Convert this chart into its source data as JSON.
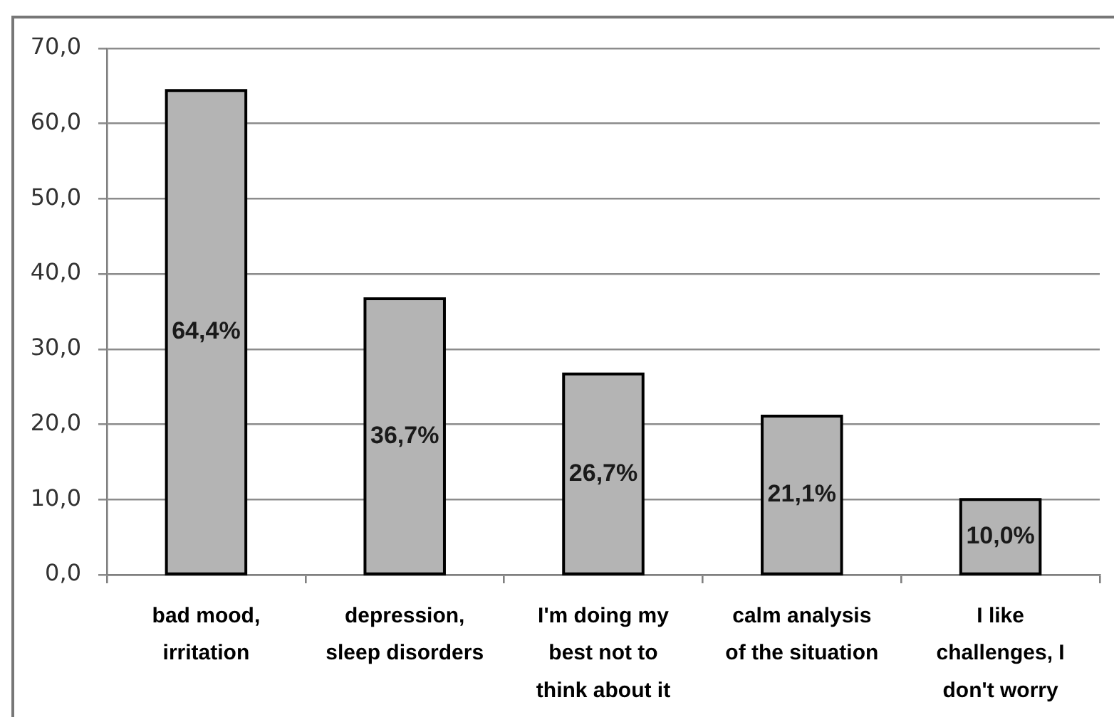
{
  "chart_data": {
    "type": "bar",
    "categories": [
      "bad mood, irritation",
      "depression, sleep disorders",
      "I'm doing my best not to think about it",
      "calm analysis of the situation",
      "I like challenges, I don't worry"
    ],
    "values": [
      64.4,
      36.7,
      26.7,
      21.1,
      10.0
    ],
    "value_labels": [
      "64,4%",
      "36,7%",
      "26,7%",
      "21,1%",
      "10,0%"
    ],
    "color": "#b4b4b4",
    "ylim": [
      0,
      70
    ],
    "yticks": [
      {
        "value": 0,
        "label": "0,0"
      },
      {
        "value": 10,
        "label": "10,0"
      },
      {
        "value": 20,
        "label": "20,0"
      },
      {
        "value": 30,
        "label": "30,0"
      },
      {
        "value": 40,
        "label": "40,0"
      },
      {
        "value": 50,
        "label": "50,0"
      },
      {
        "value": 60,
        "label": "60,0"
      },
      {
        "value": 70,
        "label": "70,0"
      }
    ],
    "grid": "y",
    "legend": false
  }
}
